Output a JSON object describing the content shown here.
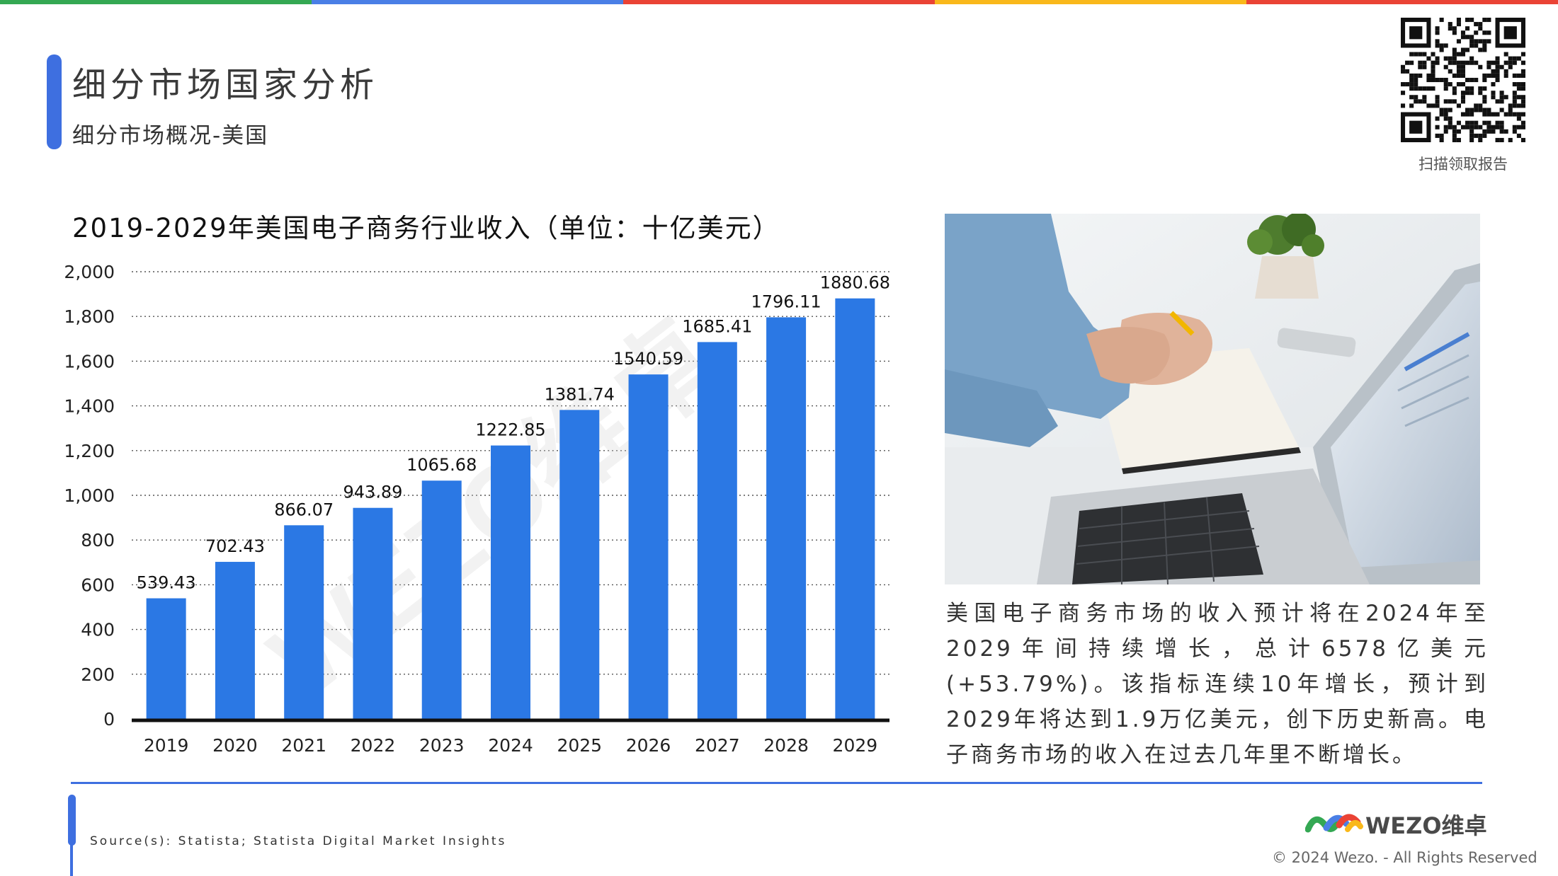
{
  "colors": {
    "topbar": [
      "#34a853",
      "#4a7fe6",
      "#ea4335",
      "#f9b81b",
      "#ea4335"
    ],
    "accent": "#3e6fe0",
    "bar": "#2b78e4"
  },
  "header": {
    "title": "细分市场国家分析",
    "subtitle": "细分市场概况-美国"
  },
  "qr": {
    "caption": "扫描领取报告"
  },
  "chart_data": {
    "type": "bar",
    "title": "2019-2029年美国电子商务行业收入（单位：十亿美元）",
    "categories": [
      "2019",
      "2020",
      "2021",
      "2022",
      "2023",
      "2024",
      "2025",
      "2026",
      "2027",
      "2028",
      "2029"
    ],
    "values": [
      539.43,
      702.43,
      866.07,
      943.89,
      1065.68,
      1222.85,
      1381.74,
      1540.59,
      1685.41,
      1796.11,
      1880.68
    ],
    "value_labels": [
      "539.43",
      "702.43",
      "866.07",
      "943.89",
      "1065.68",
      "1222.85",
      "1381.74",
      "1540.59",
      "1685.41",
      "1796.11",
      "1880.68"
    ],
    "yticks": [
      "0",
      "200",
      "400",
      "600",
      "800",
      "1,000",
      "1,200",
      "1,400",
      "1,600",
      "1,800",
      "2,000"
    ],
    "ylim": [
      0,
      2000
    ],
    "grid": true,
    "xlabel": "",
    "ylabel": ""
  },
  "watermark": "WEZO维卓",
  "description": "美国电子商务市场的收入预计将在2024年至2029年间持续增长，总计6578亿美元(+53.79%)。该指标连续10年增长，预计到2029年将达到1.9万亿美元，创下历史新高。电子商务市场的收入在过去几年里不断增长。",
  "footer": {
    "source": "Source(s): Statista; Statista Digital Market Insights",
    "logo_text": "WEZO维卓",
    "copyright": "© 2024 Wezo. - All Rights Reserved"
  }
}
